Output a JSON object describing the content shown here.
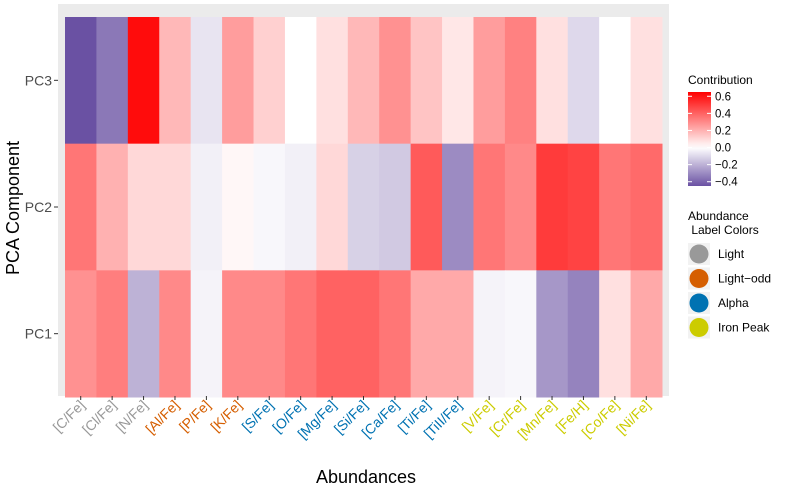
{
  "chart_data": {
    "type": "heatmap",
    "title": "",
    "xlabel": "Abundances",
    "ylabel": "PCA Component",
    "x": [
      "[C/Fe]",
      "[Cl/Fe]",
      "[N/Fe]",
      "[Al/Fe]",
      "[P/Fe]",
      "[K/Fe]",
      "[S/Fe]",
      "[O/Fe]",
      "[Mg/Fe]",
      "[Si/Fe]",
      "[Ca/Fe]",
      "[Ti/Fe]",
      "[TiII/Fe]",
      "[V/Fe]",
      "[Cr/Fe]",
      "[Mn/Fe]",
      "[Fe/H]",
      "[Co/Fe]",
      "[Ni/Fe]"
    ],
    "y": [
      "PC3",
      "PC2",
      "PC1"
    ],
    "values": [
      [
        -0.45,
        -0.35,
        0.62,
        0.18,
        -0.07,
        0.25,
        0.12,
        0.0,
        0.08,
        0.18,
        0.28,
        0.15,
        0.06,
        0.25,
        0.32,
        0.08,
        -0.1,
        0.0,
        0.08
      ],
      [
        0.35,
        0.2,
        0.1,
        0.1,
        -0.04,
        0.02,
        -0.02,
        -0.04,
        0.1,
        -0.12,
        -0.14,
        0.42,
        -0.3,
        0.35,
        0.3,
        0.5,
        0.48,
        0.35,
        0.38
      ],
      [
        0.28,
        0.33,
        -0.2,
        0.3,
        -0.03,
        0.3,
        0.3,
        0.35,
        0.4,
        0.4,
        0.35,
        0.22,
        0.22,
        -0.03,
        -0.02,
        -0.27,
        -0.32,
        0.08,
        0.22
      ]
    ],
    "x_label_groups": [
      "Light",
      "Light",
      "Light",
      "Light-odd",
      "Light-odd",
      "Light-odd",
      "Alpha",
      "Alpha",
      "Alpha",
      "Alpha",
      "Alpha",
      "Alpha",
      "Alpha",
      "Iron Peak",
      "Iron Peak",
      "Iron Peak",
      "Iron Peak",
      "Iron Peak",
      "Iron Peak"
    ],
    "scale": {
      "title": "Contribution",
      "ticks": [
        "0.6",
        "0.4",
        "0.2",
        "0.0",
        "−0.2",
        "−0.4"
      ],
      "tick_values": [
        0.6,
        0.4,
        0.2,
        0.0,
        -0.2,
        -0.4
      ],
      "min": -0.45,
      "max": 0.65,
      "colors": {
        "low": "#6A51A3",
        "mid": "#FFFFFF",
        "high": "#FF0000"
      }
    },
    "legend2": {
      "title_line1": "Abundance",
      "title_line2": " Label Colors",
      "items": [
        {
          "label": "Light",
          "color": "#999999"
        },
        {
          "label": "Light−odd",
          "color": "#D55E00"
        },
        {
          "label": "Alpha",
          "color": "#0072B2"
        },
        {
          "label": "Iron Peak",
          "color": "#CCCC00"
        }
      ]
    },
    "panel_background": "#EBEBEB",
    "grid": true,
    "legend_position": "right"
  }
}
